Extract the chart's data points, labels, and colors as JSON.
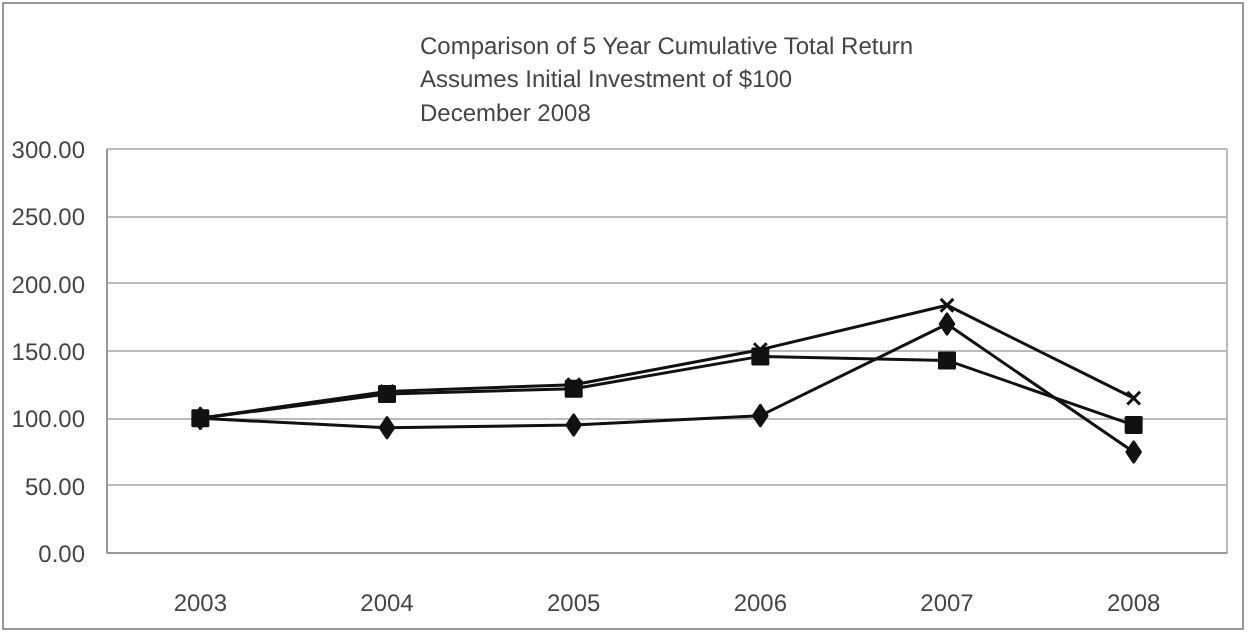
{
  "chart_data": {
    "type": "line",
    "title": "Comparison of 5 Year Cumulative Total Return\nAssumes Initial Investment of $100\nDecember 2008",
    "categories": [
      "2003",
      "2004",
      "2005",
      "2006",
      "2007",
      "2008"
    ],
    "series": [
      {
        "color": "#111111",
        "marker": "diamond",
        "values": [
          100,
          93,
          95,
          102,
          170,
          75
        ]
      },
      {
        "color": "#111111",
        "marker": "square",
        "values": [
          100,
          118,
          122,
          146,
          143,
          95
        ]
      },
      {
        "color": "#111111",
        "marker": "cross",
        "values": [
          100,
          120,
          125,
          151,
          184,
          115
        ]
      }
    ],
    "ylim": [
      0,
      300
    ],
    "yticks": [
      {
        "value": 0,
        "label": "0.00"
      },
      {
        "value": 50,
        "label": "50.00"
      },
      {
        "value": 100,
        "label": "100.00"
      },
      {
        "value": 150,
        "label": "150.00"
      },
      {
        "value": 200,
        "label": "200.00"
      },
      {
        "value": 250,
        "label": "250.00"
      },
      {
        "value": 300,
        "label": "300.00"
      }
    ],
    "grid": "y",
    "line_style": "solid"
  }
}
